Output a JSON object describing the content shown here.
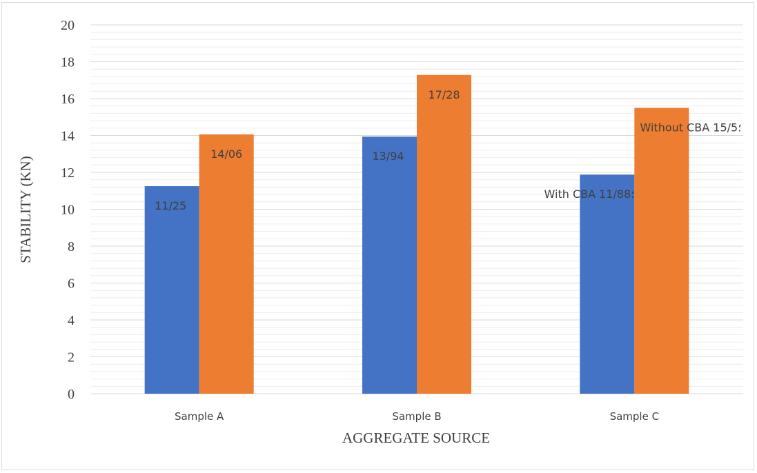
{
  "chart_data": {
    "type": "bar",
    "title": "",
    "xlabel": "AGGREGATE SOURCE",
    "ylabel": "STABILITY (KN)",
    "ylim": [
      0,
      20
    ],
    "yticks": [
      0,
      2,
      4,
      6,
      8,
      10,
      12,
      14,
      16,
      18,
      20
    ],
    "minor_gridlines": true,
    "categories": [
      "Sample A",
      "Sample B",
      "Sample C"
    ],
    "series": [
      {
        "name": "With CBA",
        "color": "#4472c4",
        "values": [
          11.25,
          13.94,
          11.88
        ],
        "labels": [
          "11/25",
          "13/94",
          "With CBA ؛11/88"
        ]
      },
      {
        "name": "Without CBA",
        "color": "#ed7d31",
        "values": [
          14.06,
          17.28,
          15.5
        ],
        "labels": [
          "14/06",
          "17/28",
          "Without CBA ؛15/5"
        ]
      }
    ],
    "grid_color": "#d9d9d9",
    "minor_grid_color": "#ececec"
  }
}
